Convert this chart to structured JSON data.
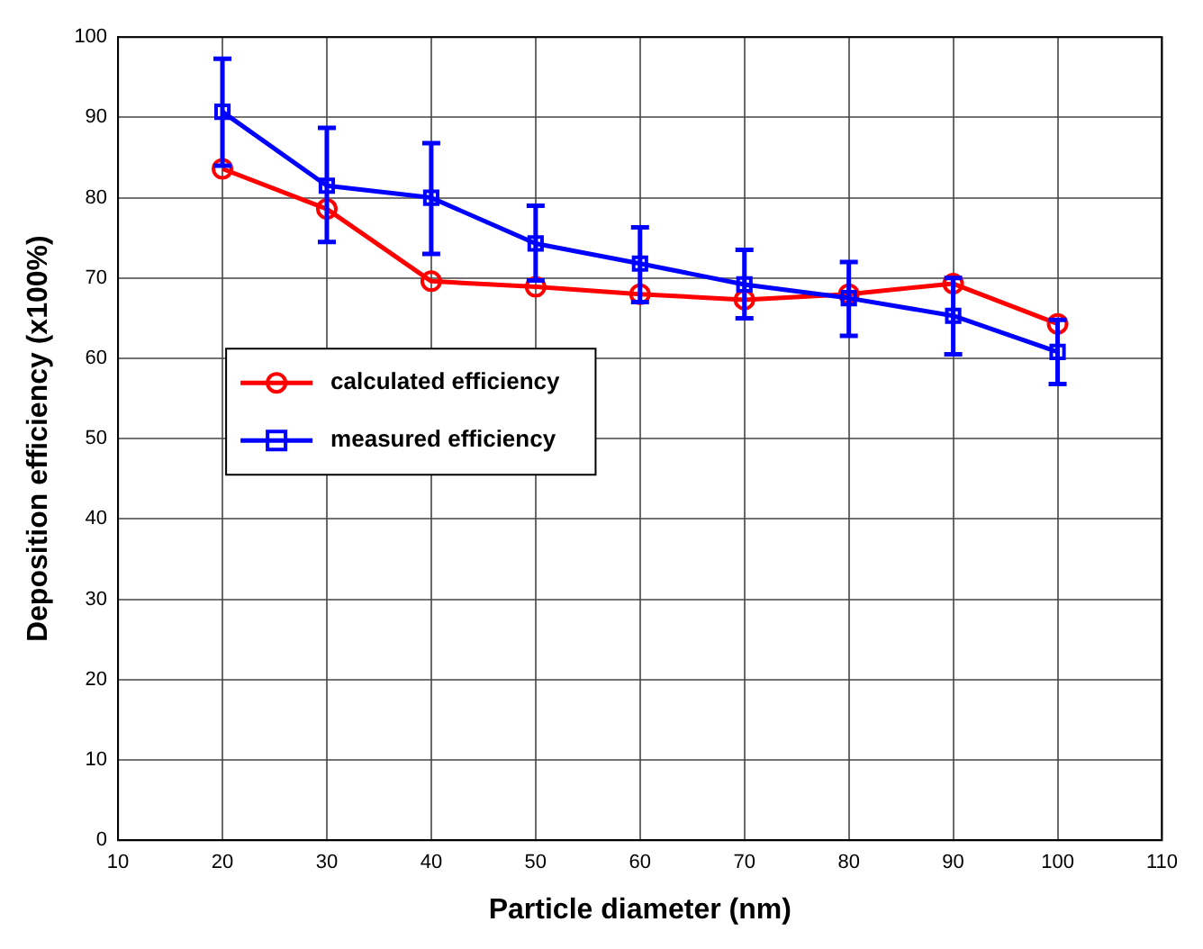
{
  "chart_data": {
    "type": "line",
    "xlabel": "Particle diameter (nm)",
    "ylabel": "Deposition efficiency (x100%)",
    "x": [
      20,
      30,
      40,
      50,
      60,
      70,
      80,
      90,
      100
    ],
    "series": [
      {
        "name": "calculated efficiency",
        "color": "#ff0000",
        "marker": "circle",
        "values": [
          83.6,
          78.6,
          69.6,
          68.9,
          68,
          67.3,
          68,
          69.3,
          64.3
        ]
      },
      {
        "name": "measured efficiency",
        "color": "#0000ff",
        "marker": "square",
        "values": [
          90.7,
          81.5,
          80,
          74.3,
          71.8,
          69.2,
          67.5,
          65.3,
          60.8
        ],
        "errors": [
          [
            84,
            97.3
          ],
          [
            74.5,
            88.7
          ],
          [
            73,
            86.8
          ],
          [
            69.7,
            79
          ],
          [
            67,
            76.3
          ],
          [
            65,
            73.5
          ],
          [
            62.8,
            72
          ],
          [
            60.5,
            70
          ],
          [
            56.8,
            64.8
          ]
        ]
      }
    ],
    "xlim": [
      10,
      110
    ],
    "xticks": [
      10,
      20,
      30,
      40,
      50,
      60,
      70,
      80,
      90,
      100,
      110
    ],
    "ylim": [
      0,
      100
    ],
    "yticks": [
      0,
      10,
      20,
      30,
      40,
      50,
      60,
      70,
      80,
      90,
      100
    ],
    "grid": true,
    "legend": "left",
    "line_style": "solid"
  }
}
